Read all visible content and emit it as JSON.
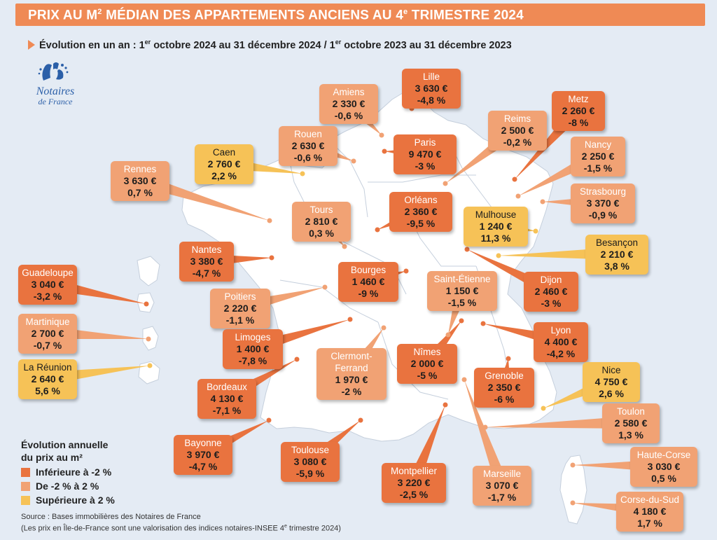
{
  "title": {
    "pre": "PRIX AU M",
    "sup1": "2",
    "mid": " MÉDIAN DES APPARTEMENTS ANCIENS AU 4",
    "sup2": "e",
    "post": " TRIMESTRE 2024"
  },
  "subtitle": {
    "p1": "Évolution en un an : 1",
    "s1": "er",
    "p2": " octobre 2024 au 31 décembre 2024 / 1",
    "s2": "er",
    "p3": " octobre 2023 au 31 décembre 2023"
  },
  "logo": {
    "line1": "Notaires",
    "line2": "de France"
  },
  "colors": {
    "low": "#e9733f",
    "mid": "#f1a274",
    "high": "#f6c257",
    "map": "#ffffff",
    "background": "#e4ebf4",
    "accent": "#ef8a55"
  },
  "legend": {
    "title_line1": "Évolution annuelle",
    "title_line2": "du prix au m²",
    "items": [
      {
        "label": "Inférieure à -2 %",
        "color": "#e9733f"
      },
      {
        "label": "De -2 % à 2 %",
        "color": "#f1a274"
      },
      {
        "label": "Supérieure à 2 %",
        "color": "#f6c257"
      }
    ]
  },
  "source": {
    "line1": "Source : Bases immobilières des Notaires de France",
    "line2a": "(Les prix en Île-de-France sont une valorisation des indices notaires-INSEE 4",
    "line2sup": "e",
    "line2b": " trimestre 2024)"
  },
  "cities": [
    {
      "name": "Lille",
      "price": "3 630 €",
      "change": "-4,8 %",
      "category": "low"
    },
    {
      "name": "Amiens",
      "price": "2 330 €",
      "change": "-0,6 %",
      "category": "mid"
    },
    {
      "name": "Metz",
      "price": "2 260 €",
      "change": "-8 %",
      "category": "low"
    },
    {
      "name": "Reims",
      "price": "2 500 €",
      "change": "-0,2 %",
      "category": "mid"
    },
    {
      "name": "Rouen",
      "price": "2 630 €",
      "change": "-0,6 %",
      "category": "mid"
    },
    {
      "name": "Paris",
      "price": "9 470 €",
      "change": "-3 %",
      "category": "low"
    },
    {
      "name": "Nancy",
      "price": "2 250 €",
      "change": "-1,5 %",
      "category": "mid"
    },
    {
      "name": "Caen",
      "price": "2 760 €",
      "change": "2,2 %",
      "category": "high"
    },
    {
      "name": "Rennes",
      "price": "3 630 €",
      "change": "0,7 %",
      "category": "mid"
    },
    {
      "name": "Strasbourg",
      "price": "3 370 €",
      "change": "-0,9 %",
      "category": "mid"
    },
    {
      "name": "Orléans",
      "price": "2 360 €",
      "change": "-9,5 %",
      "category": "low"
    },
    {
      "name": "Tours",
      "price": "2 810 €",
      "change": "0,3 %",
      "category": "mid"
    },
    {
      "name": "Mulhouse",
      "price": "1 240 €",
      "change": "11,3 %",
      "category": "high"
    },
    {
      "name": "Besançon",
      "price": "2 210 €",
      "change": "3,8 %",
      "category": "high"
    },
    {
      "name": "Nantes",
      "price": "3 380 €",
      "change": "-4,7 %",
      "category": "low"
    },
    {
      "name": "Bourges",
      "price": "1 460 €",
      "change": "-9 %",
      "category": "low"
    },
    {
      "name": "Saint-Étienne",
      "price": "1 150 €",
      "change": "-1,5 %",
      "category": "mid"
    },
    {
      "name": "Dijon",
      "price": "2 460 €",
      "change": "-3 %",
      "category": "low"
    },
    {
      "name": "Guadeloupe",
      "price": "3 040 €",
      "change": "-3,2 %",
      "category": "low"
    },
    {
      "name": "Poitiers",
      "price": "2 220 €",
      "change": "-1,1 %",
      "category": "mid"
    },
    {
      "name": "Martinique",
      "price": "2 700 €",
      "change": "-0,7 %",
      "category": "mid"
    },
    {
      "name": "Limoges",
      "price": "1 400 €",
      "change": "-7,8 %",
      "category": "low"
    },
    {
      "name": "Clermont-Ferrand",
      "price": "1 970 €",
      "change": "-2 %",
      "category": "mid"
    },
    {
      "name": "Nîmes",
      "price": "2 000 €",
      "change": "-5 %",
      "category": "low"
    },
    {
      "name": "Lyon",
      "price": "4 400 €",
      "change": "-4,2 %",
      "category": "low"
    },
    {
      "name": "La Réunion",
      "price": "2 640 €",
      "change": "5,6 %",
      "category": "high"
    },
    {
      "name": "Nice",
      "price": "4 750 €",
      "change": "2,6 %",
      "category": "high"
    },
    {
      "name": "Grenoble",
      "price": "2 350 €",
      "change": "-6 %",
      "category": "low"
    },
    {
      "name": "Bordeaux",
      "price": "4 130 €",
      "change": "-7,1 %",
      "category": "low"
    },
    {
      "name": "Toulon",
      "price": "2 580 €",
      "change": "1,3 %",
      "category": "mid"
    },
    {
      "name": "Bayonne",
      "price": "3 970 €",
      "change": "-4,7 %",
      "category": "low"
    },
    {
      "name": "Toulouse",
      "price": "3 080 €",
      "change": "-5,9 %",
      "category": "low"
    },
    {
      "name": "Haute-Corse",
      "price": "3 030 €",
      "change": "0,5 %",
      "category": "mid"
    },
    {
      "name": "Montpellier",
      "price": "3 220 €",
      "change": "-2,5 %",
      "category": "low"
    },
    {
      "name": "Marseille",
      "price": "3 070 €",
      "change": "-1,7 %",
      "category": "mid"
    },
    {
      "name": "Corse-du-Sud",
      "price": "4 180 €",
      "change": "1,7 %",
      "category": "mid"
    }
  ]
}
